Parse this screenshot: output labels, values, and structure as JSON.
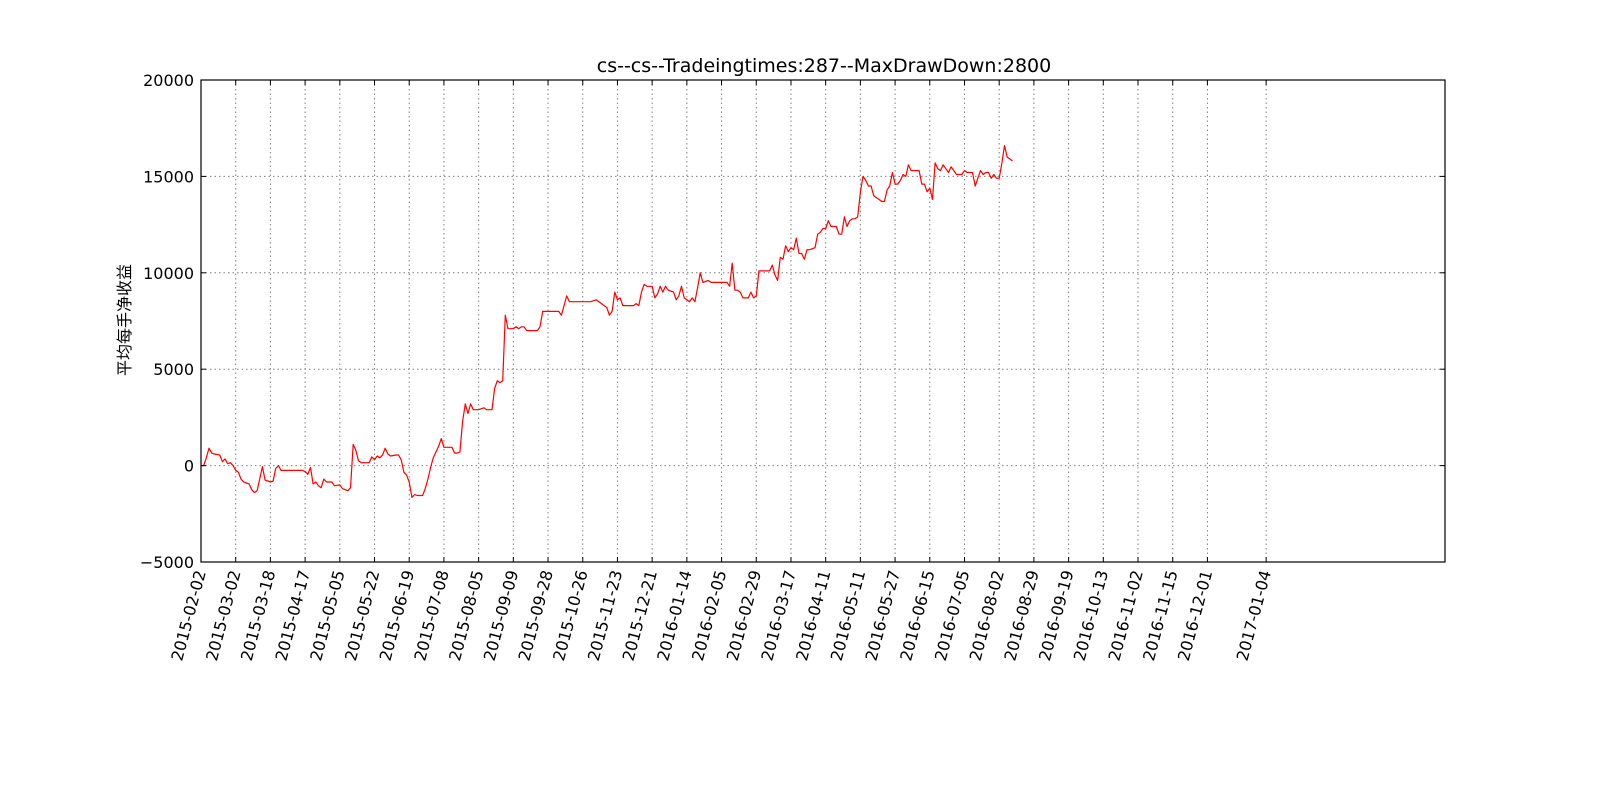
{
  "chart_data": {
    "type": "line",
    "title": "cs--cs--Tradeingtimes:287--MaxDrawDown:2800",
    "xlabel": "",
    "ylabel": "平均每手净收益",
    "ylim": [
      -5000,
      20000
    ],
    "xlim_trade_index": [
      0,
      466
    ],
    "yticks": [
      -5000,
      0,
      5000,
      10000,
      15000,
      20000
    ],
    "ytick_labels": [
      "−5000",
      "0",
      "5000",
      "10000",
      "15000",
      "20000"
    ],
    "grid": true,
    "line_color": "#ff0000",
    "xticks": [
      {
        "index": 0,
        "label": "2015-02-02"
      },
      {
        "index": 13,
        "label": "2015-03-02"
      },
      {
        "index": 26,
        "label": "2015-03-18"
      },
      {
        "index": 39,
        "label": "2015-04-17"
      },
      {
        "index": 52,
        "label": "2015-05-05"
      },
      {
        "index": 65,
        "label": "2015-05-22"
      },
      {
        "index": 78,
        "label": "2015-06-19"
      },
      {
        "index": 91,
        "label": "2015-07-08"
      },
      {
        "index": 104,
        "label": "2015-08-05"
      },
      {
        "index": 117,
        "label": "2015-09-09"
      },
      {
        "index": 130,
        "label": "2015-09-28"
      },
      {
        "index": 143,
        "label": "2015-10-26"
      },
      {
        "index": 156,
        "label": "2015-11-23"
      },
      {
        "index": 169,
        "label": "2015-12-21"
      },
      {
        "index": 182,
        "label": "2016-01-14"
      },
      {
        "index": 195,
        "label": "2016-02-05"
      },
      {
        "index": 208,
        "label": "2016-02-29"
      },
      {
        "index": 221,
        "label": "2016-03-17"
      },
      {
        "index": 234,
        "label": "2016-04-11"
      },
      {
        "index": 247,
        "label": "2016-05-11"
      },
      {
        "index": 260,
        "label": "2016-05-27"
      },
      {
        "index": 273,
        "label": "2016-06-15"
      },
      {
        "index": 286,
        "label": "2016-07-05"
      },
      {
        "index": 299,
        "label": "2016-08-02"
      },
      {
        "index": 312,
        "label": "2016-08-29"
      },
      {
        "index": 325,
        "label": "2016-09-19"
      },
      {
        "index": 338,
        "label": "2016-10-13"
      },
      {
        "index": 351,
        "label": "2016-11-02"
      },
      {
        "index": 364,
        "label": "2016-11-15"
      },
      {
        "index": 377,
        "label": "2016-12-01"
      },
      {
        "index": 399,
        "label": "2017-01-04"
      }
    ],
    "series": [
      {
        "name": "",
        "points": [
          [
            0,
            0
          ],
          [
            1,
            0
          ],
          [
            2,
            400
          ],
          [
            3,
            900
          ],
          [
            4,
            650
          ],
          [
            5,
            600
          ],
          [
            7,
            550
          ],
          [
            8,
            200
          ],
          [
            9,
            350
          ],
          [
            10,
            100
          ],
          [
            11,
            150
          ],
          [
            12,
            0
          ],
          [
            13,
            -250
          ],
          [
            14,
            -350
          ],
          [
            15,
            -700
          ],
          [
            16,
            -850
          ],
          [
            18,
            -950
          ],
          [
            19,
            -1250
          ],
          [
            20,
            -1400
          ],
          [
            21,
            -1300
          ],
          [
            22,
            -700
          ],
          [
            23,
            -50
          ],
          [
            24,
            -750
          ],
          [
            25,
            -800
          ],
          [
            26,
            -850
          ],
          [
            27,
            -800
          ],
          [
            28,
            -150
          ],
          [
            29,
            0
          ],
          [
            30,
            -250
          ],
          [
            33,
            -250
          ],
          [
            36,
            -250
          ],
          [
            38,
            -250
          ],
          [
            39,
            -300
          ],
          [
            40,
            -450
          ],
          [
            41,
            -100
          ],
          [
            42,
            -950
          ],
          [
            43,
            -850
          ],
          [
            44,
            -1050
          ],
          [
            45,
            -1150
          ],
          [
            46,
            -700
          ],
          [
            47,
            -850
          ],
          [
            49,
            -850
          ],
          [
            50,
            -1050
          ],
          [
            52,
            -1000
          ],
          [
            53,
            -1200
          ],
          [
            54,
            -1250
          ],
          [
            55,
            -1300
          ],
          [
            56,
            -1150
          ],
          [
            57,
            1100
          ],
          [
            58,
            800
          ],
          [
            59,
            250
          ],
          [
            60,
            150
          ],
          [
            63,
            150
          ],
          [
            64,
            450
          ],
          [
            65,
            300
          ],
          [
            66,
            500
          ],
          [
            67,
            400
          ],
          [
            68,
            550
          ],
          [
            69,
            900
          ],
          [
            70,
            600
          ],
          [
            71,
            500
          ],
          [
            73,
            550
          ],
          [
            74,
            550
          ],
          [
            75,
            300
          ],
          [
            76,
            -350
          ],
          [
            77,
            -500
          ],
          [
            78,
            -850
          ],
          [
            79,
            -1650
          ],
          [
            80,
            -1500
          ],
          [
            81,
            -1550
          ],
          [
            83,
            -1550
          ],
          [
            84,
            -1200
          ],
          [
            85,
            -700
          ],
          [
            86,
            -100
          ],
          [
            87,
            400
          ],
          [
            88,
            700
          ],
          [
            89,
            1000
          ],
          [
            90,
            1400
          ],
          [
            91,
            950
          ],
          [
            92,
            950
          ],
          [
            94,
            950
          ],
          [
            95,
            650
          ],
          [
            96,
            650
          ],
          [
            97,
            700
          ],
          [
            98,
            2300
          ],
          [
            99,
            3200
          ],
          [
            100,
            2700
          ],
          [
            101,
            3200
          ],
          [
            102,
            2900
          ],
          [
            104,
            2900
          ],
          [
            106,
            3000
          ],
          [
            107,
            2900
          ],
          [
            109,
            2900
          ],
          [
            110,
            4000
          ],
          [
            111,
            4400
          ],
          [
            112,
            4300
          ],
          [
            113,
            4400
          ],
          [
            114,
            7800
          ],
          [
            115,
            7100
          ],
          [
            117,
            7100
          ],
          [
            118,
            7200
          ],
          [
            119,
            7100
          ],
          [
            120,
            7200
          ],
          [
            121,
            7200
          ],
          [
            122,
            7000
          ],
          [
            124,
            7000
          ],
          [
            126,
            7000
          ],
          [
            127,
            7200
          ],
          [
            128,
            8000
          ],
          [
            130,
            8000
          ],
          [
            134,
            8000
          ],
          [
            135,
            7800
          ],
          [
            136,
            8300
          ],
          [
            137,
            8800
          ],
          [
            138,
            8500
          ],
          [
            142,
            8500
          ],
          [
            146,
            8500
          ],
          [
            148,
            8600
          ],
          [
            150,
            8400
          ],
          [
            151,
            8300
          ],
          [
            152,
            8200
          ],
          [
            153,
            7800
          ],
          [
            154,
            8000
          ],
          [
            155,
            9000
          ],
          [
            156,
            8600
          ],
          [
            157,
            8700
          ],
          [
            158,
            8300
          ],
          [
            160,
            8300
          ],
          [
            162,
            8300
          ],
          [
            163,
            8400
          ],
          [
            164,
            8300
          ],
          [
            165,
            9000
          ],
          [
            166,
            9400
          ],
          [
            167,
            9300
          ],
          [
            169,
            9300
          ],
          [
            170,
            8700
          ],
          [
            171,
            8900
          ],
          [
            172,
            9300
          ],
          [
            173,
            9000
          ],
          [
            174,
            9300
          ],
          [
            175,
            9100
          ],
          [
            177,
            9000
          ],
          [
            178,
            8600
          ],
          [
            179,
            8800
          ],
          [
            180,
            9300
          ],
          [
            181,
            8700
          ],
          [
            182,
            8600
          ],
          [
            183,
            8500
          ],
          [
            184,
            8700
          ],
          [
            185,
            8500
          ],
          [
            186,
            9200
          ],
          [
            187,
            10000
          ],
          [
            188,
            9500
          ],
          [
            190,
            9600
          ],
          [
            191,
            9500
          ],
          [
            193,
            9500
          ],
          [
            195,
            9500
          ],
          [
            197,
            9500
          ],
          [
            198,
            9300
          ],
          [
            199,
            10500
          ],
          [
            200,
            9100
          ],
          [
            201,
            9100
          ],
          [
            202,
            9000
          ],
          [
            203,
            8700
          ],
          [
            205,
            8700
          ],
          [
            206,
            9000
          ],
          [
            207,
            8700
          ],
          [
            208,
            8800
          ],
          [
            209,
            10100
          ],
          [
            211,
            10100
          ],
          [
            213,
            10100
          ],
          [
            214,
            10400
          ],
          [
            215,
            9900
          ],
          [
            216,
            9600
          ],
          [
            217,
            10800
          ],
          [
            218,
            10700
          ],
          [
            219,
            11400
          ],
          [
            220,
            11100
          ],
          [
            221,
            11300
          ],
          [
            222,
            11200
          ],
          [
            223,
            11800
          ],
          [
            224,
            11000
          ],
          [
            225,
            11000
          ],
          [
            226,
            10700
          ],
          [
            227,
            11200
          ],
          [
            228,
            11200
          ],
          [
            230,
            11300
          ],
          [
            231,
            12000
          ],
          [
            232,
            12100
          ],
          [
            233,
            12300
          ],
          [
            234,
            12300
          ],
          [
            235,
            12700
          ],
          [
            236,
            12400
          ],
          [
            238,
            12400
          ],
          [
            239,
            12000
          ],
          [
            240,
            12000
          ],
          [
            241,
            12900
          ],
          [
            242,
            12400
          ],
          [
            243,
            12700
          ],
          [
            244,
            12800
          ],
          [
            245,
            12800
          ],
          [
            246,
            12900
          ],
          [
            247,
            14200
          ],
          [
            248,
            15000
          ],
          [
            249,
            14800
          ],
          [
            250,
            14500
          ],
          [
            251,
            14500
          ],
          [
            252,
            14000
          ],
          [
            254,
            13800
          ],
          [
            255,
            13700
          ],
          [
            256,
            13700
          ],
          [
            257,
            14300
          ],
          [
            258,
            14500
          ],
          [
            259,
            15200
          ],
          [
            260,
            14600
          ],
          [
            261,
            14600
          ],
          [
            262,
            14800
          ],
          [
            263,
            15100
          ],
          [
            264,
            15000
          ],
          [
            265,
            15600
          ],
          [
            266,
            15300
          ],
          [
            267,
            15300
          ],
          [
            269,
            15300
          ],
          [
            270,
            14600
          ],
          [
            271,
            14600
          ],
          [
            272,
            14200
          ],
          [
            273,
            14400
          ],
          [
            274,
            13800
          ],
          [
            275,
            15700
          ],
          [
            276,
            15400
          ],
          [
            277,
            15300
          ],
          [
            278,
            15600
          ],
          [
            279,
            15400
          ],
          [
            280,
            15200
          ],
          [
            281,
            15500
          ],
          [
            282,
            15300
          ],
          [
            283,
            15100
          ],
          [
            285,
            15100
          ],
          [
            286,
            15300
          ],
          [
            287,
            15200
          ],
          [
            289,
            15200
          ],
          [
            290,
            14500
          ],
          [
            291,
            14900
          ],
          [
            292,
            15300
          ],
          [
            293,
            15100
          ],
          [
            294,
            15200
          ],
          [
            295,
            15200
          ],
          [
            296,
            14900
          ],
          [
            297,
            15100
          ],
          [
            298,
            14900
          ],
          [
            299,
            14900
          ],
          [
            300,
            15700
          ],
          [
            301,
            16600
          ],
          [
            302,
            16000
          ],
          [
            303,
            15900
          ],
          [
            304,
            15800
          ]
        ]
      }
    ]
  }
}
